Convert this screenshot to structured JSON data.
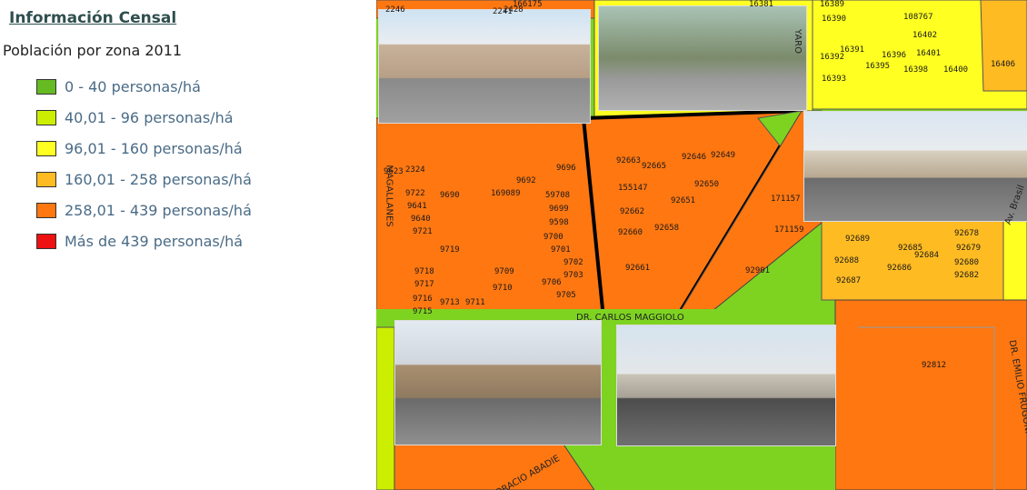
{
  "legend": {
    "title": "Información Censal",
    "subtitle": "Población por zona 2011",
    "items": [
      {
        "label": "0 - 40 personas/há",
        "color": "#66bb22"
      },
      {
        "label": "40,01 - 96 personas/há",
        "color": "#ccee00"
      },
      {
        "label": "96,01 - 160 personas/há",
        "color": "#ffff22"
      },
      {
        "label": "160,01 - 258 personas/há",
        "color": "#ffbb22"
      },
      {
        "label": "258,01 - 439 personas/há",
        "color": "#ff7711"
      },
      {
        "label": "Más de 439 personas/há",
        "color": "#ee1111"
      }
    ]
  },
  "map": {
    "zone_labels": [
      "2246",
      "2241",
      "2428",
      "166175",
      "16381",
      "16389",
      "16390",
      "108767",
      "16402",
      "16391",
      "16392",
      "16396",
      "16401",
      "16395",
      "16398",
      "16400",
      "16393",
      "16406",
      "9623",
      "2324",
      "9696",
      "9692",
      "9722",
      "9690",
      "169089",
      "59708",
      "9641",
      "9699",
      "9640",
      "9598",
      "9721",
      "9700",
      "9719",
      "9701",
      "9702",
      "9718",
      "9709",
      "9703",
      "9717",
      "9710",
      "9706",
      "9716",
      "9713",
      "9711",
      "9705",
      "9715",
      "92663",
      "92665",
      "92646",
      "92649",
      "155147",
      "92650",
      "92651",
      "92662",
      "92660",
      "92658",
      "92661",
      "92901",
      "171157",
      "171159",
      "92689",
      "92678",
      "92685",
      "92684",
      "92679",
      "92688",
      "92686",
      "92680",
      "92687",
      "92682",
      "92812"
    ],
    "streets": [
      "MAGALLANES",
      "YARO",
      "Av. Brasil",
      "DR. CARLOS MAGGIOLO",
      "DR. EMILIO FRUGONI",
      "HORACIO ABADIE"
    ]
  }
}
